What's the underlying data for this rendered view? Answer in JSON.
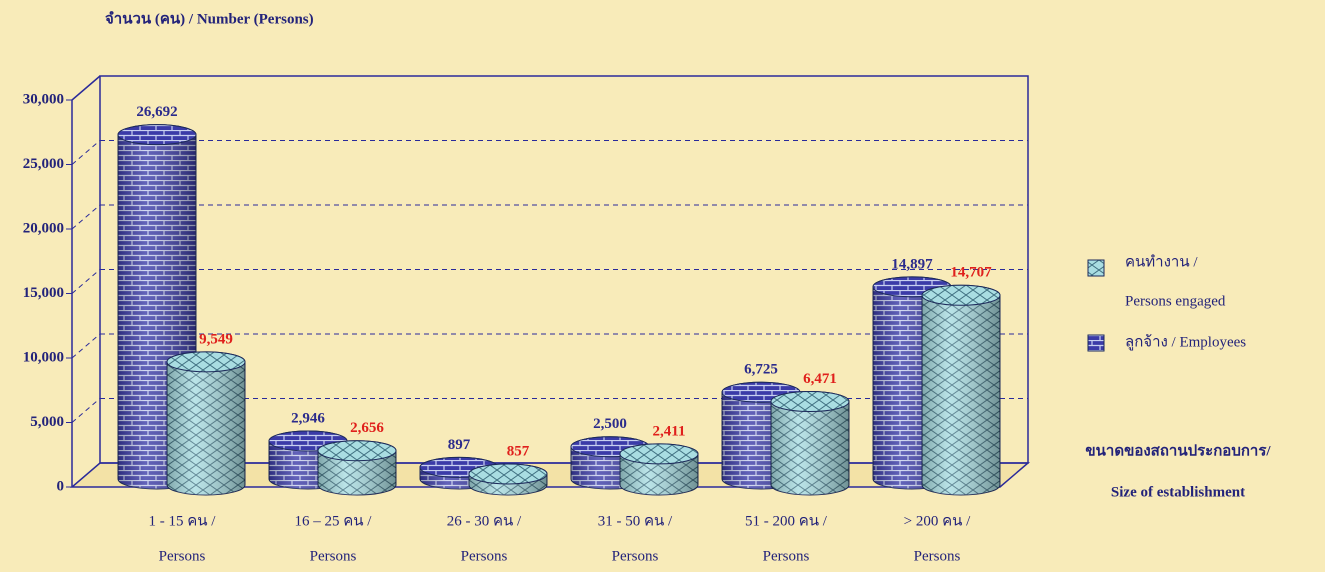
{
  "chart_data": {
    "type": "bar3d",
    "ylabel": "จำนวน (คน) / Number  (Persons)",
    "xlabel": [
      "ขนาดของสถานประกอบการ/",
      "Size of establishment"
    ],
    "categories": [
      [
        "1 - 15  คน /",
        "Persons"
      ],
      [
        "16 – 25  คน /",
        "Persons"
      ],
      [
        "26 - 30  คน /",
        "Persons"
      ],
      [
        "31 - 50  คน /",
        "Persons"
      ],
      [
        "51 - 200  คน /",
        "Persons"
      ],
      [
        "> 200  คน /",
        "Persons"
      ]
    ],
    "series": [
      {
        "name": [
          "ลูกจ้าง / Employees"
        ],
        "color": "#3b3ba8",
        "label_color": "#2b2b8c",
        "pattern": "brick",
        "values": [
          26692,
          2946,
          897,
          2500,
          6725,
          14897
        ],
        "value_labels": [
          "26,692",
          "2,946",
          "897",
          "2,500",
          "6,725",
          "14,897"
        ]
      },
      {
        "name": [
          "คนทำงาน /",
          "Persons engaged"
        ],
        "color": "#a9dde2",
        "label_color": "#e0201c",
        "pattern": "diamond",
        "values": [
          9549,
          2656,
          857,
          2411,
          6471,
          14707
        ],
        "value_labels": [
          "9,549",
          "2,656",
          "857",
          "2,411",
          "6,471",
          "14,707"
        ]
      }
    ],
    "ylim": [
      0,
      30000
    ],
    "yticks": [
      0,
      {
        "value": 5000,
        "label": "5,000"
      },
      {
        "value": 10000,
        "label": "10,000"
      },
      {
        "value": 15000,
        "label": "15,000"
      },
      {
        "value": 20000,
        "label": "20,000"
      },
      {
        "value": 25000,
        "label": "25,000"
      },
      {
        "value": 30000,
        "label": "30,000"
      }
    ],
    "grid": true
  }
}
